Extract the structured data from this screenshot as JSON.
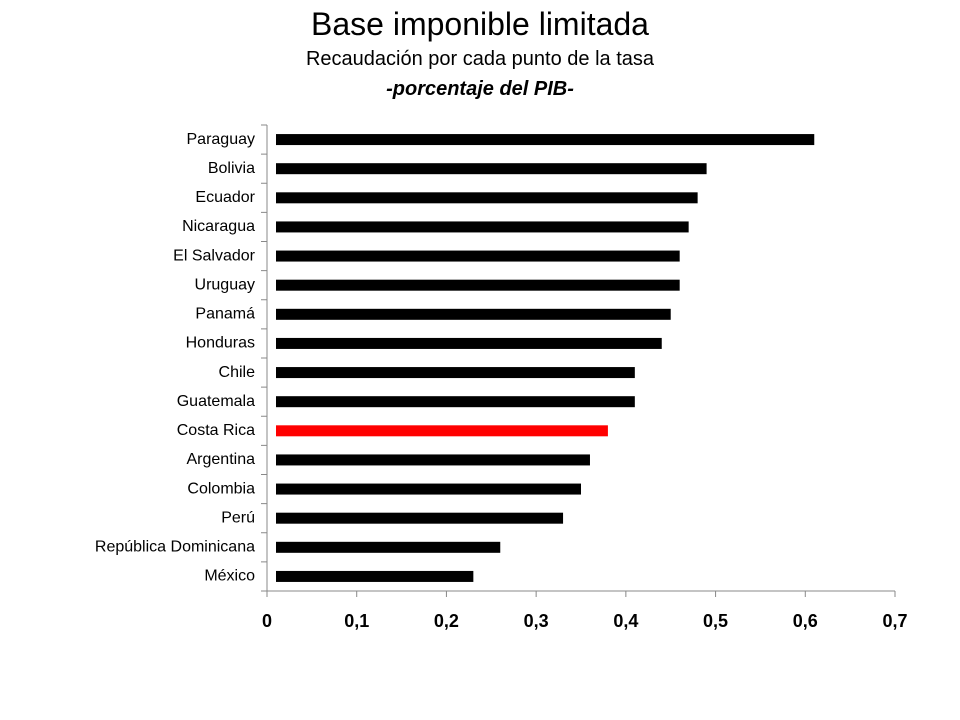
{
  "chart_data": {
    "type": "bar",
    "orientation": "horizontal",
    "title": "Base imponible limitada",
    "subtitle": "Recaudación por cada punto de la tasa",
    "subtitle2": "-porcentaje del PIB-",
    "categories": [
      "Paraguay",
      "Bolivia",
      "Ecuador",
      "Nicaragua",
      "El Salvador",
      "Uruguay",
      "Panamá",
      "Honduras",
      "Chile",
      "Guatemala",
      "Costa Rica",
      "Argentina",
      "Colombia",
      "Perú",
      "República Dominicana",
      "México"
    ],
    "values": [
      0.61,
      0.49,
      0.48,
      0.47,
      0.46,
      0.46,
      0.45,
      0.44,
      0.41,
      0.41,
      0.38,
      0.36,
      0.35,
      0.33,
      0.26,
      0.23
    ],
    "highlight": "Costa Rica",
    "bar_color": "#000000",
    "highlight_color": "#ff0000",
    "xlim": [
      0,
      0.7
    ],
    "xticks": [
      "0",
      "0,1",
      "0,2",
      "0,3",
      "0,4",
      "0,5",
      "0,6",
      "0,7"
    ],
    "grid": false,
    "legend": "none"
  }
}
